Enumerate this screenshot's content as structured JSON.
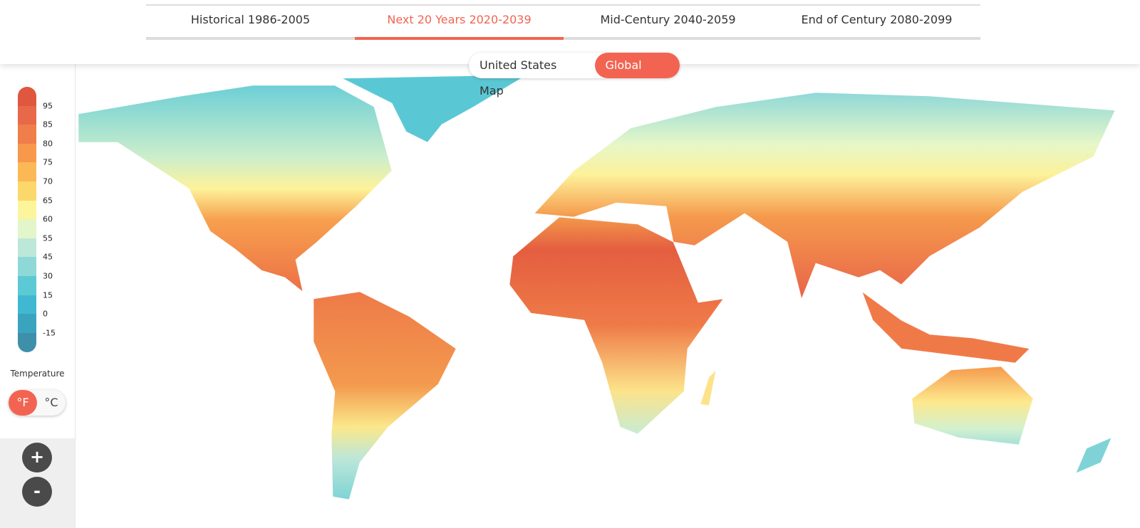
{
  "tabs": [
    "Historical 1986-2005",
    "Next 20 Years 2020-2039",
    "Mid-Century 2040-2059",
    "End of Century 2080-2099"
  ],
  "active_tab": 1,
  "map_toggle": {
    "options": [
      "United States Map",
      "Global Map"
    ],
    "active": 1
  },
  "legend": {
    "ticks": [
      95,
      85,
      80,
      75,
      70,
      65,
      60,
      55,
      45,
      30,
      15,
      0,
      -15
    ],
    "colors": [
      "#e0573f",
      "#e8684a",
      "#ef7e4b",
      "#f7984b",
      "#fbb955",
      "#fcd76b",
      "#fdf59c",
      "#e2f6c9",
      "#bde7d8",
      "#8fd8d8",
      "#5ccad4",
      "#40b8d1",
      "#3aa4bf",
      "#3e8faa"
    ],
    "title": "Temperature"
  },
  "unit_toggle": {
    "options": [
      "°F",
      "°C"
    ],
    "active": 0
  },
  "zoom": {
    "in": "+",
    "out": "-"
  }
}
